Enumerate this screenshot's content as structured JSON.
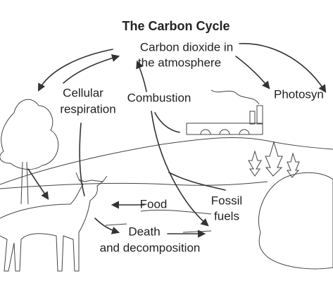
{
  "title": "The Carbon Cycle",
  "nodes": [
    {
      "lines": [
        "Carbon dioxide in",
        "the atmosphere"
      ]
    },
    {
      "lines": [
        "Cellular",
        "respiration"
      ]
    },
    {
      "lines": [
        "Combustion"
      ]
    },
    {
      "lines": [
        "Photosyn"
      ]
    },
    {
      "lines": [
        "Food"
      ]
    },
    {
      "lines": [
        "Fossil",
        "fuels"
      ]
    },
    {
      "lines": [
        "Death",
        "and decomposition"
      ]
    }
  ]
}
